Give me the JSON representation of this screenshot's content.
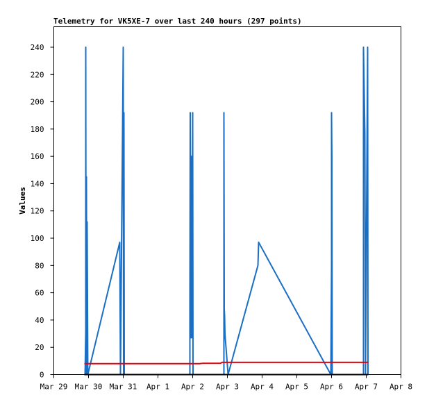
{
  "chart_data": {
    "type": "line",
    "title": "Telemetry for VK5XE-7 over last 240 hours (297 points)",
    "y_label": "Values",
    "xlim": [
      29,
      39
    ],
    "xticks": [
      {
        "value": 29,
        "label": "Mar 29"
      },
      {
        "value": 30,
        "label": "Mar 30"
      },
      {
        "value": 31,
        "label": "Mar 31"
      },
      {
        "value": 32,
        "label": "Apr 1"
      },
      {
        "value": 33,
        "label": "Apr 2"
      },
      {
        "value": 34,
        "label": "Apr 3"
      },
      {
        "value": 35,
        "label": "Apr 4"
      },
      {
        "value": 36,
        "label": "Apr 5"
      },
      {
        "value": 37,
        "label": "Apr 6"
      },
      {
        "value": 38,
        "label": "Apr 7"
      },
      {
        "value": 39,
        "label": "Apr 8"
      }
    ],
    "ylim": [
      0,
      255
    ],
    "yticks": [
      0,
      20,
      40,
      60,
      80,
      100,
      120,
      140,
      160,
      180,
      200,
      220,
      240
    ],
    "series": [
      {
        "color": "#1a6fc4",
        "x": [
          29.9,
          29.92,
          29.92,
          29.93,
          29.94,
          29.95,
          29.96,
          29.98,
          30.9,
          30.92,
          31.0,
          31.01,
          31.02,
          31.03,
          32.0,
          32.92,
          32.92,
          32.93,
          32.95,
          32.96,
          32.97,
          32.98,
          33.0,
          33.01,
          33.5,
          33.9,
          33.9,
          33.91,
          33.92,
          33.93,
          34.02,
          34.88,
          34.9,
          36.98,
          37.0,
          37.0,
          37.01,
          37.02,
          37.5,
          37.92,
          37.92,
          37.96,
          37.98,
          38.04,
          38.05
        ],
        "values": [
          0,
          32,
          240,
          0,
          145,
          0,
          112,
          0,
          97,
          0,
          240,
          0,
          192,
          0,
          null,
          0,
          48,
          192,
          27,
          160,
          133,
          27,
          192,
          0,
          null,
          0,
          192,
          48,
          43,
          30,
          0,
          80,
          97,
          0,
          80,
          192,
          160,
          0,
          null,
          0,
          240,
          177,
          0,
          240,
          0
        ]
      },
      {
        "color": "#e8000b",
        "x": [
          29.88,
          33.2,
          33.3,
          33.8,
          33.85,
          38.06
        ],
        "values": [
          8,
          8,
          8.3,
          8.3,
          9,
          9
        ]
      },
      {
        "color": "#000000",
        "x": [
          29.88,
          38.06
        ],
        "values": [
          0,
          0
        ]
      }
    ]
  }
}
